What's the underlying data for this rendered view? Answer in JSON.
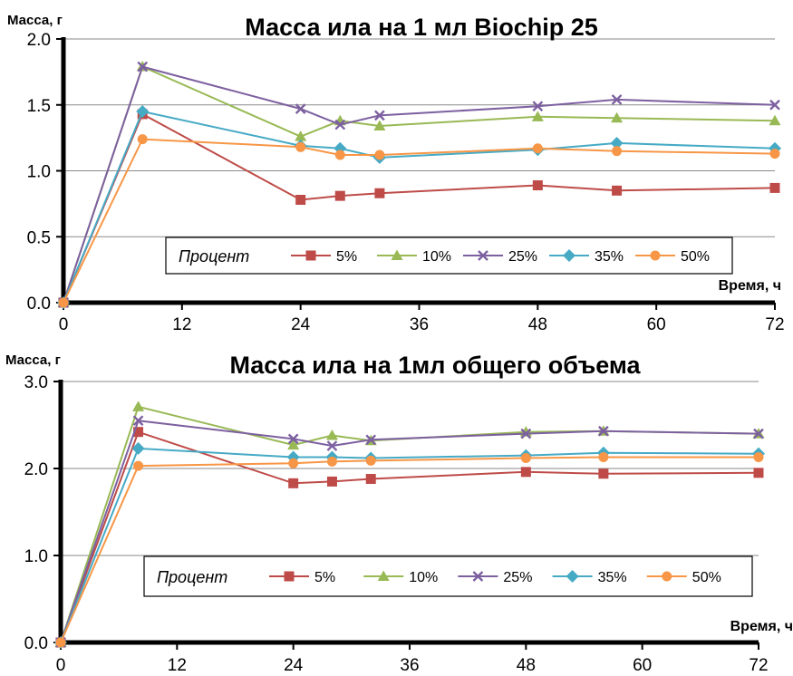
{
  "chart_data": [
    {
      "type": "line",
      "title": "Масса ила на 1 мл Biochip 25",
      "ylabel": "Масса, г",
      "xlabel": "Время, ч",
      "x_ticks": [
        0,
        12,
        24,
        36,
        48,
        60,
        72
      ],
      "y_ticks": [
        "0.0",
        "0.5",
        "1.0",
        "1.5",
        "2.0"
      ],
      "xlim": [
        0,
        72
      ],
      "ylim": [
        0,
        2.0
      ],
      "grid": "horizontal",
      "legend_title": "Процент",
      "legend_position": "bottom-center",
      "x": [
        0,
        8,
        24,
        28,
        32,
        48,
        56,
        72
      ],
      "series": [
        {
          "name": "5%",
          "color": "#be4b48",
          "marker": "square",
          "values": [
            0,
            1.43,
            0.78,
            0.81,
            0.83,
            0.89,
            0.85,
            0.87
          ]
        },
        {
          "name": "10%",
          "color": "#98b954",
          "marker": "triangle",
          "values": [
            0,
            1.79,
            1.26,
            1.38,
            1.34,
            1.41,
            1.4,
            1.38
          ]
        },
        {
          "name": "25%",
          "color": "#7d60a0",
          "marker": "x",
          "values": [
            0,
            1.79,
            1.47,
            1.35,
            1.42,
            1.49,
            1.54,
            1.5
          ]
        },
        {
          "name": "35%",
          "color": "#46aac5",
          "marker": "diamond",
          "values": [
            0,
            1.45,
            1.19,
            1.17,
            1.1,
            1.16,
            1.21,
            1.17
          ]
        },
        {
          "name": "50%",
          "color": "#f79646",
          "marker": "circle",
          "values": [
            0,
            1.24,
            1.18,
            1.12,
            1.12,
            1.17,
            1.15,
            1.13
          ]
        }
      ]
    },
    {
      "type": "line",
      "title": "Масса ила на 1мл общего объема",
      "ylabel": "Масса, г",
      "xlabel": "Время, ч",
      "x_ticks": [
        0,
        12,
        24,
        36,
        48,
        60,
        72
      ],
      "y_ticks": [
        "0.0",
        "1.0",
        "2.0",
        "3.0"
      ],
      "xlim": [
        0,
        72
      ],
      "ylim": [
        0,
        3.0
      ],
      "grid": "horizontal",
      "legend_title": "Процент",
      "legend_position": "bottom-center",
      "x": [
        0,
        8,
        24,
        28,
        32,
        48,
        56,
        72
      ],
      "series": [
        {
          "name": "5%",
          "color": "#be4b48",
          "marker": "square",
          "values": [
            0,
            2.42,
            1.83,
            1.85,
            1.88,
            1.96,
            1.94,
            1.95
          ]
        },
        {
          "name": "10%",
          "color": "#98b954",
          "marker": "triangle",
          "values": [
            0,
            2.71,
            2.27,
            2.38,
            2.32,
            2.42,
            2.43,
            2.4
          ]
        },
        {
          "name": "25%",
          "color": "#7d60a0",
          "marker": "x",
          "values": [
            0,
            2.55,
            2.34,
            2.26,
            2.33,
            2.4,
            2.43,
            2.4
          ]
        },
        {
          "name": "35%",
          "color": "#46aac5",
          "marker": "diamond",
          "values": [
            0,
            2.23,
            2.13,
            2.13,
            2.12,
            2.15,
            2.18,
            2.17
          ]
        },
        {
          "name": "50%",
          "color": "#f79646",
          "marker": "circle",
          "values": [
            0,
            2.03,
            2.06,
            2.08,
            2.09,
            2.12,
            2.13,
            2.13
          ]
        }
      ]
    }
  ]
}
